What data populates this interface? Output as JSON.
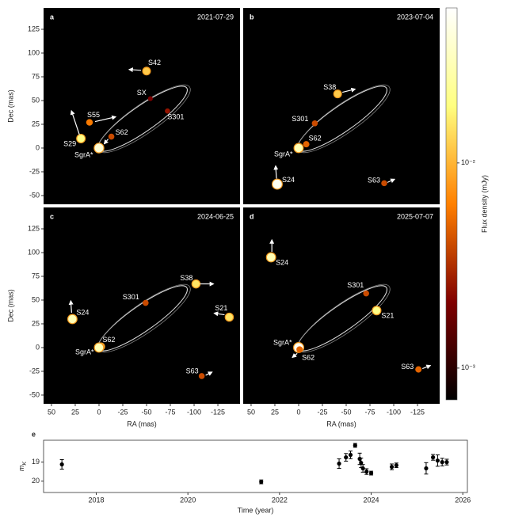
{
  "chart_data": [
    {
      "type": "scatter",
      "panel": "a",
      "date": "2021-07-29",
      "ylabel": "Dec (mas)",
      "xlim": [
        58.3,
        -148.3
      ],
      "ylim": [
        -59.2,
        147.5
      ],
      "yticks": [
        125,
        100,
        75,
        50,
        25,
        0,
        -25,
        -50
      ],
      "points": [
        {
          "name": "S42",
          "x": -50,
          "y": 81,
          "flux": 0.012
        },
        {
          "name": "SX",
          "x": -54,
          "y": 52,
          "flux": 0.002
        },
        {
          "name": "S301",
          "x": -72,
          "y": 39,
          "flux": 0.0025
        },
        {
          "name": "S55",
          "x": 10,
          "y": 27,
          "flux": 0.006
        },
        {
          "name": "S62",
          "x": -13,
          "y": 12,
          "flux": 0.004
        },
        {
          "name": "S29",
          "x": 19,
          "y": 10,
          "flux": 0.02
        },
        {
          "name": "SgrA*",
          "x": 0,
          "y": 0,
          "flux": 0.04
        }
      ]
    },
    {
      "type": "scatter",
      "panel": "b",
      "date": "2023-07-04",
      "xlim": [
        58.3,
        -148.3
      ],
      "ylim": [
        -59.2,
        147.5
      ],
      "points": [
        {
          "name": "S38",
          "x": -41,
          "y": 57,
          "flux": 0.012
        },
        {
          "name": "S301",
          "x": -17,
          "y": 26,
          "flux": 0.004
        },
        {
          "name": "S62",
          "x": -8,
          "y": 4,
          "flux": 0.005
        },
        {
          "name": "SgrA*",
          "x": 0,
          "y": 0,
          "flux": 0.03
        },
        {
          "name": "S24",
          "x": 22.5,
          "y": -38,
          "flux": 0.05
        },
        {
          "name": "S63",
          "x": -90,
          "y": -37,
          "flux": 0.004
        }
      ]
    },
    {
      "type": "scatter",
      "panel": "c",
      "date": "2024-06-25",
      "xlabel": "RA (mas)",
      "ylabel": "Dec (mas)",
      "xlim": [
        58.3,
        -148.3
      ],
      "ylim": [
        -59.2,
        147.5
      ],
      "xticks": [
        50,
        25,
        0,
        -25,
        -50,
        -75,
        -100,
        -125
      ],
      "yticks": [
        125,
        100,
        75,
        50,
        25,
        0,
        -25,
        -50
      ],
      "points": [
        {
          "name": "S38",
          "x": -102,
          "y": 67,
          "flux": 0.015
        },
        {
          "name": "S301",
          "x": -49,
          "y": 47,
          "flux": 0.004
        },
        {
          "name": "S24",
          "x": 28,
          "y": 30,
          "flux": 0.03
        },
        {
          "name": "S21",
          "x": -137,
          "y": 32,
          "flux": 0.015
        },
        {
          "name": "S62",
          "x": -2,
          "y": 1,
          "flux": 0.01
        },
        {
          "name": "SgrA*",
          "x": 0,
          "y": 0,
          "flux": 0.03
        },
        {
          "name": "S63",
          "x": -108,
          "y": -30,
          "flux": 0.004
        }
      ]
    },
    {
      "type": "scatter",
      "panel": "d",
      "date": "2025-07-07",
      "xlabel": "RA (mas)",
      "xlim": [
        58.3,
        -148.3
      ],
      "ylim": [
        -59.2,
        147.5
      ],
      "xticks": [
        50,
        25,
        0,
        -25,
        -50,
        -75,
        -100,
        -125
      ],
      "points": [
        {
          "name": "S24",
          "x": 29,
          "y": 95,
          "flux": 0.03
        },
        {
          "name": "S301",
          "x": -71,
          "y": 57,
          "flux": 0.004
        },
        {
          "name": "S21",
          "x": -82,
          "y": 39,
          "flux": 0.02
        },
        {
          "name": "SgrA*",
          "x": 0,
          "y": 0,
          "flux": 0.05
        },
        {
          "name": "S62",
          "x": -1,
          "y": -2,
          "flux": 0.005
        },
        {
          "name": "S63",
          "x": -126,
          "y": -23,
          "flux": 0.005
        }
      ]
    },
    {
      "type": "colorbar",
      "label": "Flux density (mJy)",
      "log": true,
      "lim": [
        0.0007,
        0.057
      ],
      "ticks": [
        {
          "value": 0.01,
          "label": "10⁻²"
        },
        {
          "value": 0.001,
          "label": "10⁻³"
        }
      ]
    },
    {
      "type": "errorbar",
      "panel": "e",
      "xlabel": "Time (year)",
      "ylabel": "m",
      "ylabel_sub": "K",
      "xlim": [
        2016.85,
        2026.1
      ],
      "ylim": [
        20.6,
        17.85
      ],
      "xticks": [
        2018,
        2020,
        2022,
        2024,
        2026
      ],
      "yticks": [
        19,
        20
      ],
      "color": "#000000",
      "x": [
        2017.25,
        2021.6,
        2023.3,
        2023.45,
        2023.55,
        2023.65,
        2023.75,
        2023.78,
        2023.82,
        2023.9,
        2024.0,
        2024.45,
        2024.55,
        2025.2,
        2025.35,
        2025.45,
        2025.55,
        2025.65
      ],
      "values": [
        19.12,
        20.04,
        19.08,
        18.75,
        18.62,
        18.12,
        18.83,
        19.04,
        19.33,
        19.5,
        19.58,
        19.25,
        19.17,
        19.33,
        18.75,
        18.92,
        19.0,
        19.0
      ],
      "errors": [
        0.25,
        0.1,
        0.25,
        0.2,
        0.2,
        0.1,
        0.3,
        0.25,
        0.2,
        0.15,
        0.1,
        0.15,
        0.12,
        0.3,
        0.15,
        0.3,
        0.2,
        0.15
      ]
    }
  ]
}
